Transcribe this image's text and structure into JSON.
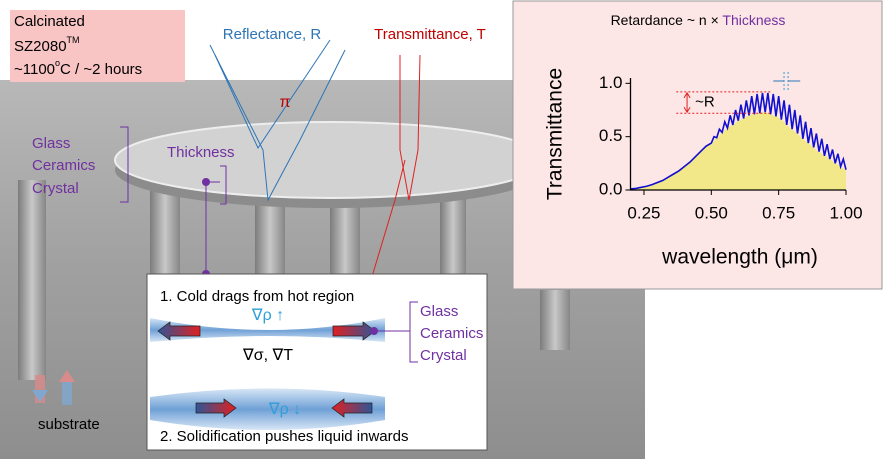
{
  "process_label": {
    "line1": "Calcinated",
    "line2": [
      "SZ2080",
      "TM"
    ],
    "line3": [
      "~1100",
      "o",
      "C / ~2 hours"
    ]
  },
  "optics": {
    "reflectance": "Reflectance, R",
    "transmittance": "Transmittance, T",
    "pi": "π",
    "thickness": "Thickness",
    "phases": [
      "Glass",
      "Ceramics",
      "Crystal"
    ]
  },
  "mechanism": {
    "step1": "1. Cold drags from hot region",
    "grad_up": "∇ρ ↑",
    "gradients": "∇σ, ∇T",
    "grad_down": "∇ρ ↓",
    "phases": [
      "Glass",
      "Ceramics",
      "Crystal"
    ],
    "step2": "2. Solidification pushes liquid inwards"
  },
  "substrate": "substrate",
  "chart_data": {
    "type": "line",
    "title": "Retardance ~ n ×",
    "title_highlight": "Thickness",
    "annotation": "~R",
    "ylabel": "Transmittance",
    "xlabel": "wavelength (μm)",
    "xlim": [
      0.2,
      1.0
    ],
    "ylim": [
      0,
      1.05
    ],
    "xticks": [
      0.25,
      {
        "value": 0.5,
        "label": "0.50"
      },
      0.75,
      {
        "value": 1.0,
        "label": "1.00"
      }
    ],
    "yticks": [
      {
        "value": 0,
        "label": "0.0"
      },
      0.5,
      {
        "value": 1.0,
        "label": "1.0"
      }
    ],
    "x": [
      0.2,
      0.22,
      0.24,
      0.26,
      0.28,
      0.3,
      0.32,
      0.34,
      0.36,
      0.38,
      0.4,
      0.42,
      0.44,
      0.46,
      0.48,
      0.5,
      0.51,
      0.52,
      0.53,
      0.54,
      0.55,
      0.56,
      0.57,
      0.58,
      0.59,
      0.6,
      0.61,
      0.62,
      0.63,
      0.64,
      0.65,
      0.66,
      0.67,
      0.68,
      0.69,
      0.7,
      0.71,
      0.72,
      0.73,
      0.74,
      0.75,
      0.76,
      0.77,
      0.78,
      0.79,
      0.8,
      0.81,
      0.82,
      0.83,
      0.84,
      0.85,
      0.86,
      0.87,
      0.88,
      0.89,
      0.9,
      0.91,
      0.92,
      0.93,
      0.94,
      0.95,
      0.96,
      0.97,
      0.98,
      0.99,
      1.0
    ],
    "series": [
      {
        "color": "#f2e88a",
        "fill": true,
        "values": [
          0.01,
          0.015,
          0.025,
          0.035,
          0.05,
          0.07,
          0.09,
          0.12,
          0.15,
          0.18,
          0.22,
          0.26,
          0.31,
          0.36,
          0.41,
          0.44,
          0.46,
          0.49,
          0.51,
          0.54,
          0.56,
          0.58,
          0.6,
          0.61,
          0.63,
          0.65,
          0.66,
          0.67,
          0.69,
          0.7,
          0.71,
          0.71,
          0.72,
          0.72,
          0.73,
          0.73,
          0.72,
          0.71,
          0.7,
          0.69,
          0.68,
          0.66,
          0.64,
          0.61,
          0.59,
          0.57,
          0.55,
          0.53,
          0.5,
          0.48,
          0.46,
          0.44,
          0.42,
          0.4,
          0.37,
          0.36,
          0.34,
          0.32,
          0.31,
          0.29,
          0.27,
          0.25,
          0.24,
          0.22,
          0.2,
          0.19
        ]
      },
      {
        "color": "#1010d0",
        "fill": false,
        "values": [
          0.01,
          0.015,
          0.025,
          0.035,
          0.05,
          0.07,
          0.09,
          0.12,
          0.15,
          0.18,
          0.22,
          0.26,
          0.31,
          0.36,
          0.41,
          0.44,
          0.5,
          0.49,
          0.57,
          0.54,
          0.64,
          0.58,
          0.7,
          0.61,
          0.75,
          0.65,
          0.8,
          0.67,
          0.84,
          0.7,
          0.88,
          0.71,
          0.9,
          0.72,
          0.91,
          0.73,
          0.91,
          0.71,
          0.9,
          0.69,
          0.88,
          0.66,
          0.84,
          0.61,
          0.8,
          0.57,
          0.75,
          0.53,
          0.7,
          0.48,
          0.64,
          0.44,
          0.58,
          0.4,
          0.53,
          0.36,
          0.48,
          0.32,
          0.43,
          0.29,
          0.38,
          0.25,
          0.34,
          0.22,
          0.29,
          0.19
        ]
      }
    ]
  }
}
